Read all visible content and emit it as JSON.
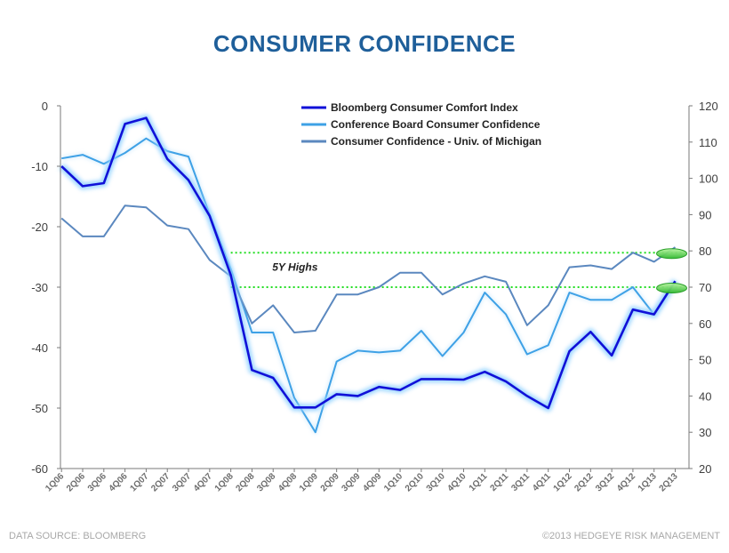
{
  "page": {
    "title": "CONSUMER CONFIDENCE",
    "source": "DATA SOURCE:  BLOOMBERG",
    "copyright": "©2013 HEDGEYE RISK MANAGEMENT"
  },
  "chart_data": {
    "type": "line",
    "title": "CONSUMER CONFIDENCE",
    "categories": [
      "1Q06",
      "2Q06",
      "3Q06",
      "4Q06",
      "1Q07",
      "2Q07",
      "3Q07",
      "4Q07",
      "1Q08",
      "2Q08",
      "3Q08",
      "4Q08",
      "1Q09",
      "2Q09",
      "3Q09",
      "4Q09",
      "1Q10",
      "2Q10",
      "3Q10",
      "4Q10",
      "1Q11",
      "2Q11",
      "3Q11",
      "4Q11",
      "1Q12",
      "2Q12",
      "3Q12",
      "4Q12",
      "1Q13",
      "2Q13"
    ],
    "x": [
      0,
      0.5,
      1,
      1.5,
      2,
      2.5,
      3,
      3.5,
      4,
      4.5,
      5,
      5.5,
      6,
      6.5,
      7,
      7.5,
      8,
      8.5,
      9,
      9.5,
      10,
      10.5,
      11,
      11.5,
      12,
      12.5,
      13,
      13.5,
      14,
      14.5,
      15,
      15.5,
      16,
      16.5,
      17,
      17.5,
      18,
      18.5,
      19,
      19.5,
      20,
      20.5,
      21,
      21.5,
      22,
      22.5,
      23,
      23.5,
      24,
      24.5,
      25,
      25.5,
      26,
      26.5,
      27,
      27.5,
      28,
      28.5,
      29
    ],
    "y_left": {
      "min": -60,
      "max": 0,
      "ticks": [
        0,
        -10,
        -20,
        -30,
        -40,
        -50,
        -60
      ],
      "side": "left"
    },
    "y_right": {
      "min": 20,
      "max": 120,
      "ticks": [
        120,
        110,
        100,
        90,
        80,
        70,
        60,
        50,
        40,
        30,
        20
      ],
      "side": "right"
    },
    "grid": false,
    "legend": {
      "position": "top-center"
    },
    "series": [
      {
        "name": "Bloomberg Consumer Comfort Index",
        "axis": "left",
        "color": "#1010d8",
        "points": [
          [
            0,
            -10
          ],
          [
            1,
            -13.3
          ],
          [
            2,
            -12.8
          ],
          [
            3,
            -3
          ],
          [
            4,
            -2
          ],
          [
            5,
            -8.8
          ],
          [
            6,
            -12.3
          ],
          [
            7,
            -18.2
          ],
          [
            8,
            -28
          ],
          [
            9,
            -43.7
          ],
          [
            10,
            -45
          ],
          [
            11,
            -49.9
          ],
          [
            12,
            -49.9
          ],
          [
            13,
            -47.7
          ],
          [
            14,
            -48
          ],
          [
            15,
            -46.5
          ],
          [
            16,
            -47
          ],
          [
            17,
            -45.2
          ],
          [
            18,
            -45.2
          ],
          [
            19,
            -45.3
          ],
          [
            20,
            -44
          ],
          [
            21,
            -45.6
          ],
          [
            22,
            -48
          ],
          [
            23,
            -50
          ],
          [
            24,
            -40.6
          ],
          [
            25,
            -37.4
          ],
          [
            26,
            -41.3
          ],
          [
            27,
            -33.7
          ],
          [
            28,
            -34.5
          ],
          [
            29,
            -29
          ]
        ]
      },
      {
        "name": "Conference Board Consumer Confidence",
        "axis": "right",
        "color": "#3ea1e6",
        "points": [
          [
            0,
            105.5
          ],
          [
            1,
            106.5
          ],
          [
            2,
            104
          ],
          [
            3,
            107
          ],
          [
            4,
            111
          ],
          [
            5,
            107.5
          ],
          [
            6,
            106
          ],
          [
            7,
            90
          ],
          [
            8,
            75
          ],
          [
            9,
            57.5
          ],
          [
            10,
            57.5
          ],
          [
            11,
            39.5
          ],
          [
            12,
            30
          ],
          [
            13,
            49.5
          ],
          [
            14,
            52.5
          ],
          [
            15,
            52
          ],
          [
            16,
            52.5
          ],
          [
            17,
            58
          ],
          [
            18,
            51
          ],
          [
            19,
            57.5
          ],
          [
            20,
            68.5
          ],
          [
            21,
            62.5
          ],
          [
            22,
            51.5
          ],
          [
            23,
            54
          ],
          [
            24,
            68.5
          ],
          [
            25,
            66.5
          ],
          [
            26,
            66.5
          ],
          [
            27,
            70
          ],
          [
            28,
            62.5
          ],
          [
            29,
            71.5
          ]
        ]
      },
      {
        "name": "Consumer Confidence - Univ. of Michigan",
        "axis": "right",
        "color": "#5b88bf",
        "points": [
          [
            0,
            89
          ],
          [
            1,
            84
          ],
          [
            2,
            84
          ],
          [
            3,
            92.5
          ],
          [
            4,
            92
          ],
          [
            5,
            87
          ],
          [
            6,
            86
          ],
          [
            7,
            77.5
          ],
          [
            8,
            73
          ],
          [
            9,
            60
          ],
          [
            10,
            65
          ],
          [
            11,
            57.5
          ],
          [
            12,
            58
          ],
          [
            13,
            68
          ],
          [
            14,
            68
          ],
          [
            15,
            70
          ],
          [
            16,
            74
          ],
          [
            17,
            74
          ],
          [
            18,
            68
          ],
          [
            19,
            71
          ],
          [
            20,
            73
          ],
          [
            21,
            71.5
          ],
          [
            22,
            59.5
          ],
          [
            23,
            65
          ],
          [
            24,
            75.5
          ],
          [
            25,
            76
          ],
          [
            26,
            75
          ],
          [
            27,
            79.5
          ],
          [
            28,
            77
          ],
          [
            29,
            81
          ]
        ]
      }
    ],
    "reference_lines": [
      {
        "axis": "right",
        "y": 79.5,
        "color": "#22dd22"
      },
      {
        "axis": "right",
        "y": 70,
        "color": "#22dd22"
      }
    ],
    "annotations": [
      {
        "text": "5Y Highs",
        "x": 10,
        "axis": "right",
        "y": 75.5
      }
    ]
  }
}
